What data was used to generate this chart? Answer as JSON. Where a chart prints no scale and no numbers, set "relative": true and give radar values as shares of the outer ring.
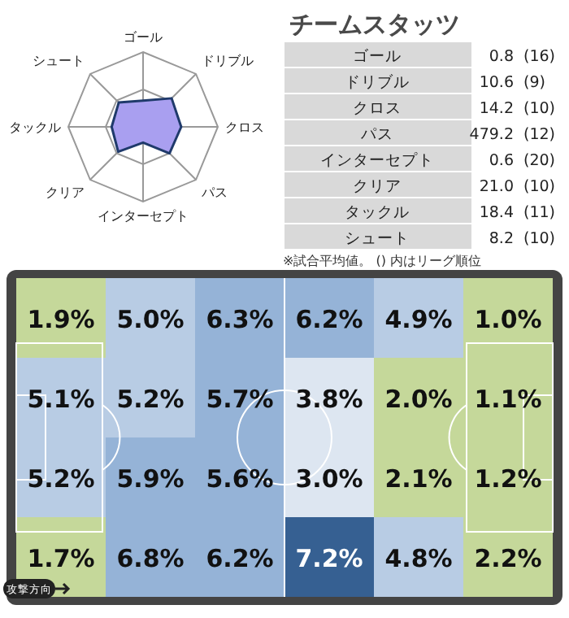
{
  "chart_data": [
    {
      "type": "radar",
      "relative": true,
      "categories": [
        "ゴール",
        "ドリブル",
        "クロス",
        "パス",
        "インターセプト",
        "クリア",
        "タックル",
        "シュート"
      ],
      "series": [
        {
          "color": "#1f3a6b",
          "values": [
            0.35,
            0.54,
            0.51,
            0.5,
            0.21,
            0.47,
            0.42,
            0.46
          ]
        }
      ]
    },
    {
      "type": "other",
      "title": "チームスタッツ",
      "data_labels": true,
      "categories": [
        "ゴール",
        "ドリブル",
        "クロス",
        "パス",
        "インターセプト",
        "クリア",
        "タックル",
        "シュート"
      ],
      "series": [
        {
          "values": [
            0.8,
            10.6,
            14.2,
            479.2,
            0.6,
            21.0,
            18.4,
            8.2
          ],
          "value_labels": [
            "0.8",
            "10.6",
            "14.2",
            "479.2",
            "0.6",
            "21.0",
            "18.4",
            "8.2"
          ]
        },
        {
          "values": [
            16,
            9,
            10,
            12,
            20,
            10,
            11,
            10
          ],
          "value_labels": [
            "(16)",
            "(9)",
            "(10)",
            "(12)",
            "(20)",
            "(10)",
            "(11)",
            "(10)"
          ]
        }
      ],
      "annotations": [
        "※試合平均値。 () 内はリーグ順位"
      ]
    },
    {
      "type": "heatmap",
      "categories": [
        null,
        null,
        null,
        null,
        null,
        null
      ],
      "y_categories": [
        null,
        null,
        null,
        null
      ],
      "cells": [
        [
          1.9,
          5.0,
          6.3,
          6.2,
          4.9,
          1.0
        ],
        [
          5.1,
          5.2,
          5.7,
          3.8,
          2.0,
          1.1
        ],
        [
          5.2,
          5.9,
          5.6,
          3.0,
          2.1,
          1.2
        ],
        [
          1.7,
          6.8,
          6.2,
          7.2,
          4.8,
          2.2
        ]
      ],
      "cell_labels": [
        [
          "1.9%",
          "5.0%",
          "6.3%",
          "6.2%",
          "4.9%",
          "1.0%"
        ],
        [
          "5.1%",
          "5.2%",
          "5.7%",
          "3.8%",
          "2.0%",
          "1.1%"
        ],
        [
          "5.2%",
          "5.9%",
          "5.6%",
          "3.0%",
          "2.1%",
          "1.2%"
        ],
        [
          "1.7%",
          "6.8%",
          "6.2%",
          "7.2%",
          "4.8%",
          "2.2%"
        ]
      ],
      "annotations": [
        "攻撃方向"
      ]
    }
  ]
}
